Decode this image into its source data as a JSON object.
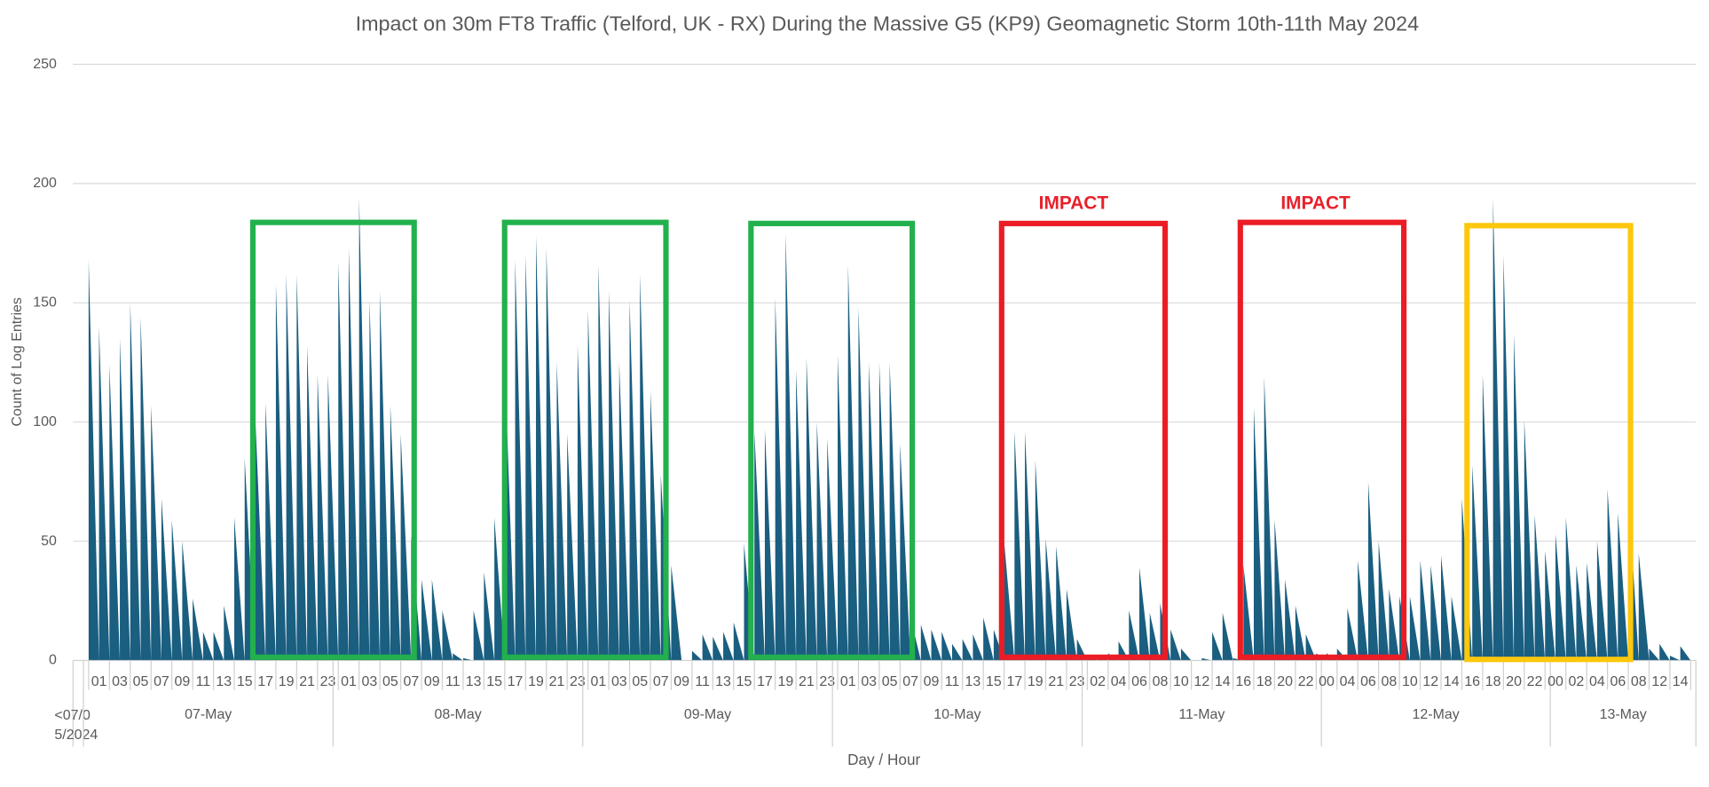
{
  "chart_data": {
    "type": "area",
    "title": "Impact on 30m FT8 Traffic (Telford, UK - RX) During the Massive G5 (KP9) Geomagnetic Storm 10th-11th May 2024",
    "x_label": "Day / Hour",
    "y_label": "Count of Log Entries",
    "color": "#1a5e80",
    "ylim": [
      0,
      250
    ],
    "yticks": [
      0,
      50,
      100,
      150,
      200,
      250
    ],
    "grid": true,
    "annotations": [
      {
        "label": "IMPACT"
      },
      {
        "label": "IMPACT"
      }
    ],
    "groups": [
      {
        "label": "<07/05/2024",
        "hours": [
          null
        ]
      },
      {
        "label": "07-May",
        "hours": [
          null,
          "01",
          null,
          "03",
          null,
          "05",
          null,
          "07",
          null,
          "09",
          null,
          "11",
          null,
          "13",
          null,
          "15",
          null,
          "17",
          null,
          "19",
          null,
          "21",
          null,
          "23"
        ]
      },
      {
        "label": "08-May",
        "hours": [
          null,
          "01",
          null,
          "03",
          null,
          "05",
          null,
          "07",
          null,
          "09",
          null,
          "11",
          null,
          "13",
          null,
          "15",
          null,
          "17",
          null,
          "19",
          null,
          "21",
          null,
          "23"
        ]
      },
      {
        "label": "09-May",
        "hours": [
          null,
          "01",
          null,
          "03",
          null,
          "05",
          null,
          "07",
          null,
          "09",
          null,
          "11",
          null,
          "13",
          null,
          "15",
          null,
          "17",
          null,
          "19",
          null,
          "21",
          null,
          "23"
        ]
      },
      {
        "label": "10-May",
        "hours": [
          null,
          "01",
          null,
          "03",
          null,
          "05",
          null,
          "07",
          null,
          "09",
          null,
          "11",
          null,
          "13",
          null,
          "15",
          null,
          "17",
          null,
          "19",
          null,
          "21",
          null,
          "23"
        ]
      },
      {
        "label": "11-May",
        "hours": [
          null,
          "02",
          null,
          "04",
          null,
          "06",
          null,
          "08",
          null,
          "10",
          null,
          "12",
          null,
          "14",
          null,
          "16",
          null,
          "18",
          null,
          "20",
          null,
          "22",
          null
        ]
      },
      {
        "label": "12-May",
        "hours": [
          "00",
          null,
          "04",
          null,
          "06",
          null,
          "08",
          null,
          "10",
          null,
          "12",
          null,
          "14",
          null,
          "16",
          null,
          "18",
          null,
          "20",
          null,
          "22",
          null
        ]
      },
      {
        "label": "13-May",
        "hours": [
          "00",
          null,
          "02",
          null,
          "04",
          null,
          "06",
          null,
          "08",
          null,
          "12",
          null,
          "14",
          null
        ]
      }
    ],
    "values": [
      0,
      168,
      140,
      124,
      135,
      150,
      144,
      107,
      68,
      59,
      50,
      26,
      12,
      12,
      23,
      60,
      85,
      104,
      108,
      158,
      162,
      162,
      132,
      120,
      120,
      167,
      173,
      194,
      151,
      155,
      107,
      95,
      52,
      34,
      34,
      21,
      3,
      1,
      21,
      37,
      60,
      125,
      168,
      170,
      178,
      173,
      125,
      95,
      132,
      147,
      166,
      155,
      125,
      151,
      162,
      113,
      78,
      40,
      0,
      4,
      11,
      10,
      12,
      16,
      49,
      96,
      97,
      152,
      179,
      122,
      127,
      100,
      93,
      128,
      166,
      148,
      125,
      125,
      125,
      91,
      18,
      15,
      13,
      12,
      7,
      9,
      11,
      18,
      13,
      50,
      96,
      96,
      84,
      51,
      48,
      30,
      9,
      2,
      2,
      3,
      8,
      21,
      39,
      20,
      24,
      13,
      5,
      0,
      1,
      12,
      20,
      1,
      40,
      106,
      119,
      59,
      34,
      23,
      11,
      3,
      3,
      5,
      22,
      42,
      75,
      50,
      30,
      27,
      27,
      42,
      40,
      44,
      27,
      68,
      82,
      120,
      194,
      170,
      137,
      101,
      61,
      46,
      53,
      60,
      40,
      41,
      50,
      72,
      62,
      72,
      45,
      5,
      7,
      2,
      6,
      9
    ]
  }
}
